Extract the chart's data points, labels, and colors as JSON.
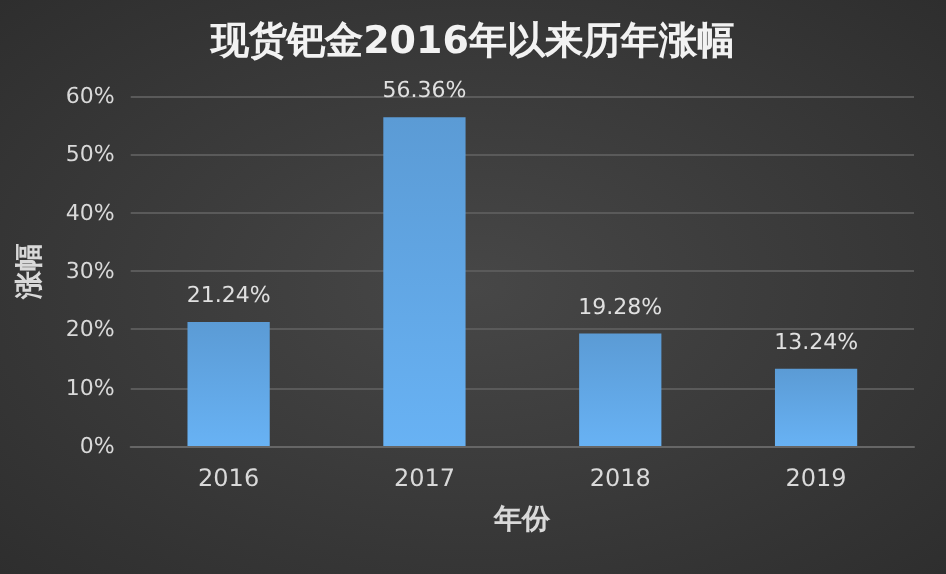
{
  "chart_data": {
    "type": "bar",
    "title": "现货钯金2016年以来历年涨幅",
    "xlabel": "年份",
    "ylabel": "涨幅",
    "categories": [
      "2016",
      "2017",
      "2018",
      "2019"
    ],
    "values": [
      21.24,
      56.36,
      19.28,
      13.24
    ],
    "value_labels": [
      "21.24%",
      "56.36%",
      "19.28%",
      "13.24%"
    ],
    "color": "#5b9bd5",
    "ylim": [
      0,
      60
    ],
    "yticks": [
      {
        "value": 0,
        "label": "0%"
      },
      {
        "value": 10,
        "label": "10%"
      },
      {
        "value": 20,
        "label": "20%"
      },
      {
        "value": 30,
        "label": "30%"
      },
      {
        "value": 40,
        "label": "40%"
      },
      {
        "value": 50,
        "label": "50%"
      },
      {
        "value": 60,
        "label": "60%"
      }
    ],
    "grid": "y"
  }
}
